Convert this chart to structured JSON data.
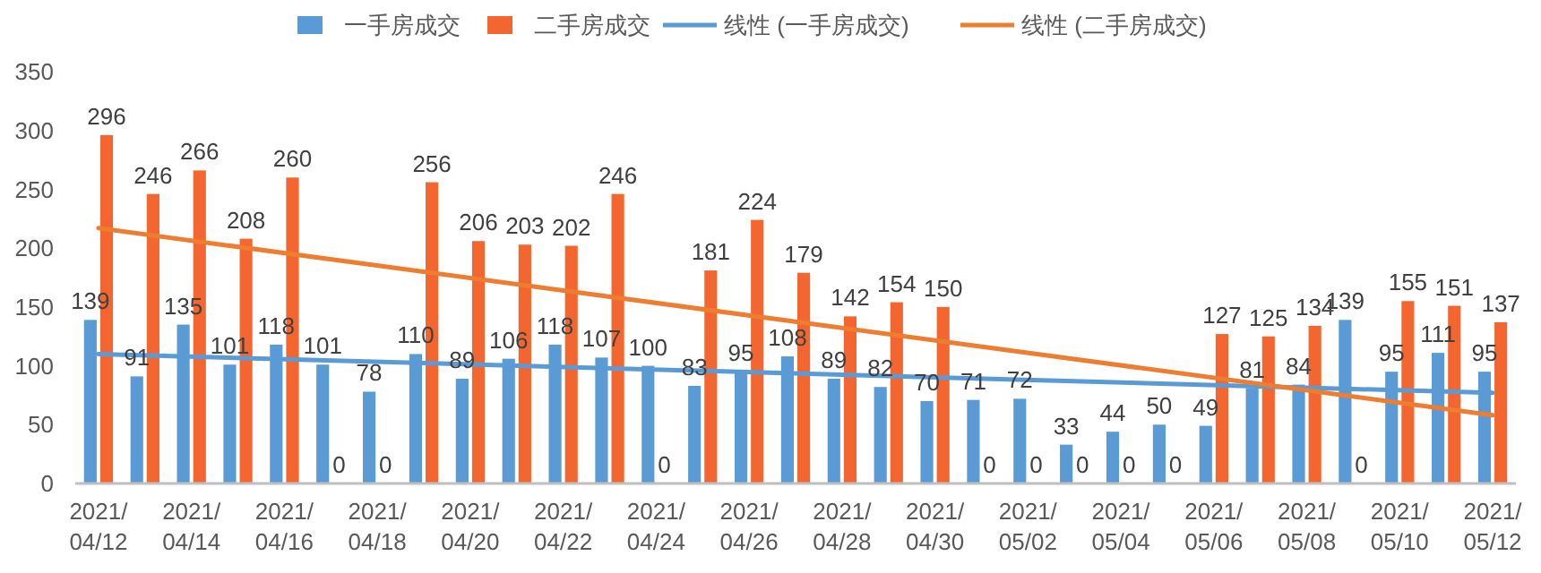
{
  "chart_data": {
    "type": "bar",
    "categories": [
      "2021/04/12",
      null,
      "2021/04/14",
      null,
      "2021/04/16",
      null,
      "2021/04/18",
      null,
      "2021/04/20",
      null,
      "2021/04/22",
      null,
      "2021/04/24",
      null,
      "2021/04/26",
      null,
      "2021/04/28",
      null,
      "2021/04/30",
      null,
      "2021/05/02",
      null,
      "2021/05/04",
      null,
      "2021/05/06",
      null,
      "2021/05/08",
      null,
      "2021/05/10",
      null,
      "2021/05/12"
    ],
    "series": [
      {
        "name": "一手房成交",
        "color": "#5b9bd5",
        "values": [
          139,
          91,
          135,
          101,
          118,
          101,
          78,
          110,
          89,
          106,
          118,
          107,
          100,
          83,
          95,
          108,
          89,
          82,
          70,
          71,
          72,
          33,
          44,
          50,
          49,
          81,
          84,
          139,
          95,
          111,
          95
        ],
        "value_labels": [
          "139",
          "91",
          "135",
          "101",
          "118",
          "101",
          "78",
          "110",
          "89",
          "106",
          "118",
          "107",
          "100",
          "83",
          "95",
          "108",
          "89",
          "82",
          "70",
          "71",
          "72",
          "33",
          "44",
          "50",
          "49",
          "81",
          "84",
          "139",
          "95",
          "111",
          "95"
        ]
      },
      {
        "name": "二手房成交",
        "color": "#f4662f",
        "values": [
          296,
          246,
          266,
          208,
          260,
          0,
          0,
          256,
          206,
          203,
          202,
          246,
          0,
          181,
          224,
          179,
          142,
          154,
          150,
          0,
          0,
          0,
          0,
          0,
          127,
          125,
          134,
          0,
          155,
          151,
          137
        ],
        "value_labels": [
          "296",
          "246",
          "266",
          "208",
          "260",
          "0",
          "0",
          "256",
          "206",
          "203",
          "202",
          "246",
          "0",
          "181",
          "224",
          "179",
          "142",
          "154",
          "150",
          "0",
          "0",
          "0",
          "0",
          "0",
          "127",
          "125",
          "134",
          "0",
          "155",
          "151",
          "137"
        ]
      },
      {
        "name": "线性 (一手房成交)",
        "type": "line",
        "color": "#5b9bd5",
        "x": [
          "2021/04/12",
          "2021/05/12"
        ],
        "values": [
          110,
          77
        ]
      },
      {
        "name": "线性 (二手房成交)",
        "type": "line",
        "color": "#ed7d31",
        "x": [
          "2021/04/12",
          "2021/05/12"
        ],
        "values": [
          217,
          58
        ]
      }
    ],
    "ylim": [
      0,
      350
    ],
    "yticks": [
      0,
      50,
      100,
      150,
      200,
      250,
      300,
      350
    ],
    "legend": "top",
    "grid": false
  }
}
